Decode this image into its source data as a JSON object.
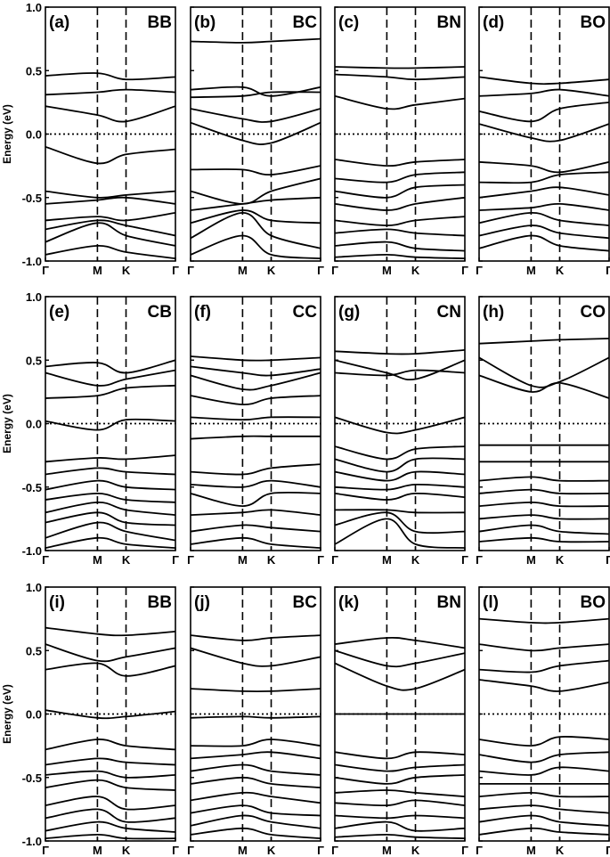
{
  "chart_data": {
    "type": "line",
    "description_grid": "3 rows x 4 columns band-structure panels",
    "x_tick_labels": [
      "Γ",
      "M",
      "K",
      "Γ"
    ],
    "ylabel": "Energy (eV)",
    "ylim": [
      -1.0,
      1.0
    ],
    "y_ticks": [
      1.0,
      0.5,
      0.0,
      -0.5,
      -1.0
    ],
    "y_tick_labels": [
      "1.0",
      "0.5",
      "0.0",
      "-0.5",
      "-1.0"
    ],
    "fermi_level": 0.0,
    "panels": [
      {
        "tag": "(a)",
        "name": "BB",
        "bands": [
          [
            0.46,
            0.48,
            0.43,
            0.45
          ],
          [
            0.31,
            0.33,
            0.35,
            0.33
          ],
          [
            0.22,
            0.15,
            0.1,
            0.22
          ],
          [
            -0.1,
            -0.23,
            -0.16,
            -0.12
          ],
          [
            -0.45,
            -0.5,
            -0.48,
            -0.45
          ],
          [
            -0.55,
            -0.52,
            -0.5,
            -0.55
          ],
          [
            -0.68,
            -0.65,
            -0.68,
            -0.62
          ],
          [
            -0.75,
            -0.68,
            -0.72,
            -0.8
          ],
          [
            -0.85,
            -0.7,
            -0.8,
            -0.88
          ],
          [
            -0.95,
            -0.88,
            -0.93,
            -0.98
          ]
        ]
      },
      {
        "tag": "(b)",
        "name": "BC",
        "bands": [
          [
            0.73,
            0.72,
            0.73,
            0.75
          ],
          [
            0.35,
            0.37,
            0.3,
            0.37
          ],
          [
            0.29,
            0.3,
            0.33,
            0.33
          ],
          [
            0.2,
            0.12,
            0.1,
            0.2
          ],
          [
            0.09,
            -0.05,
            -0.07,
            0.09
          ],
          [
            -0.28,
            -0.28,
            -0.32,
            -0.25
          ],
          [
            -0.45,
            -0.55,
            -0.45,
            -0.35
          ],
          [
            -0.6,
            -0.55,
            -0.52,
            -0.5
          ],
          [
            -0.7,
            -0.6,
            -0.68,
            -0.7
          ],
          [
            -0.82,
            -0.62,
            -0.8,
            -0.9
          ],
          [
            -0.95,
            -0.8,
            -0.95,
            -0.98
          ]
        ]
      },
      {
        "tag": "(c)",
        "name": "BN",
        "bands": [
          [
            0.53,
            0.52,
            0.52,
            0.53
          ],
          [
            0.47,
            0.45,
            0.43,
            0.45
          ],
          [
            0.3,
            0.2,
            0.23,
            0.28
          ],
          [
            -0.2,
            -0.25,
            -0.22,
            -0.2
          ],
          [
            -0.35,
            -0.38,
            -0.32,
            -0.3
          ],
          [
            -0.45,
            -0.5,
            -0.42,
            -0.4
          ],
          [
            -0.55,
            -0.6,
            -0.55,
            -0.5
          ],
          [
            -0.68,
            -0.72,
            -0.68,
            -0.65
          ],
          [
            -0.78,
            -0.75,
            -0.78,
            -0.8
          ],
          [
            -0.88,
            -0.85,
            -0.9,
            -0.92
          ],
          [
            -0.97,
            -0.95,
            -0.97,
            -0.98
          ]
        ]
      },
      {
        "tag": "(d)",
        "name": "BO",
        "bands": [
          [
            0.45,
            0.4,
            0.4,
            0.43
          ],
          [
            0.3,
            0.32,
            0.35,
            0.3
          ],
          [
            0.18,
            0.1,
            0.2,
            0.25
          ],
          [
            0.08,
            -0.03,
            -0.05,
            0.08
          ],
          [
            -0.22,
            -0.25,
            -0.3,
            -0.22
          ],
          [
            -0.38,
            -0.38,
            -0.32,
            -0.3
          ],
          [
            -0.5,
            -0.45,
            -0.42,
            -0.48
          ],
          [
            -0.6,
            -0.58,
            -0.55,
            -0.6
          ],
          [
            -0.7,
            -0.62,
            -0.68,
            -0.72
          ],
          [
            -0.8,
            -0.72,
            -0.78,
            -0.82
          ],
          [
            -0.9,
            -0.8,
            -0.88,
            -0.92
          ]
        ]
      },
      {
        "tag": "(e)",
        "name": "CB",
        "bands": [
          [
            0.45,
            0.48,
            0.4,
            0.5
          ],
          [
            0.4,
            0.3,
            0.35,
            0.42
          ],
          [
            0.2,
            0.22,
            0.28,
            0.3
          ],
          [
            0.02,
            -0.05,
            0.03,
            0.02
          ],
          [
            -0.3,
            -0.27,
            -0.28,
            -0.25
          ],
          [
            -0.4,
            -0.35,
            -0.38,
            -0.4
          ],
          [
            -0.52,
            -0.45,
            -0.5,
            -0.52
          ],
          [
            -0.6,
            -0.55,
            -0.6,
            -0.62
          ],
          [
            -0.7,
            -0.62,
            -0.68,
            -0.72
          ],
          [
            -0.78,
            -0.7,
            -0.78,
            -0.8
          ],
          [
            -0.9,
            -0.78,
            -0.85,
            -0.92
          ],
          [
            -0.98,
            -0.9,
            -0.95,
            -0.98
          ]
        ]
      },
      {
        "tag": "(f)",
        "name": "CC",
        "bands": [
          [
            0.53,
            0.5,
            0.5,
            0.52
          ],
          [
            0.45,
            0.4,
            0.38,
            0.43
          ],
          [
            0.38,
            0.27,
            0.3,
            0.4
          ],
          [
            0.22,
            0.15,
            0.2,
            0.22
          ],
          [
            0.05,
            0.03,
            0.05,
            0.05
          ],
          [
            -0.12,
            -0.1,
            -0.1,
            -0.1
          ],
          [
            -0.38,
            -0.4,
            -0.35,
            -0.32
          ],
          [
            -0.48,
            -0.5,
            -0.45,
            -0.5
          ],
          [
            -0.55,
            -0.65,
            -0.55,
            -0.55
          ],
          [
            -0.72,
            -0.7,
            -0.68,
            -0.72
          ],
          [
            -0.85,
            -0.8,
            -0.82,
            -0.85
          ],
          [
            -0.95,
            -0.9,
            -0.95,
            -0.98
          ]
        ]
      },
      {
        "tag": "(g)",
        "name": "CN",
        "bands": [
          [
            0.57,
            0.55,
            0.55,
            0.58
          ],
          [
            0.5,
            0.4,
            0.35,
            0.5
          ],
          [
            0.4,
            0.38,
            0.42,
            0.4
          ],
          [
            0.05,
            -0.07,
            -0.05,
            0.05
          ],
          [
            -0.18,
            -0.28,
            -0.2,
            -0.18
          ],
          [
            -0.28,
            -0.38,
            -0.28,
            -0.28
          ],
          [
            -0.38,
            -0.45,
            -0.38,
            -0.4
          ],
          [
            -0.5,
            -0.52,
            -0.48,
            -0.5
          ],
          [
            -0.55,
            -0.6,
            -0.55,
            -0.58
          ],
          [
            -0.68,
            -0.68,
            -0.7,
            -0.7
          ],
          [
            -0.8,
            -0.7,
            -0.85,
            -0.85
          ],
          [
            -0.95,
            -0.75,
            -0.95,
            -0.98
          ]
        ]
      },
      {
        "tag": "(h)",
        "name": "CO",
        "bands": [
          [
            0.63,
            0.65,
            0.66,
            0.67
          ],
          [
            0.52,
            0.3,
            0.33,
            0.52
          ],
          [
            0.38,
            0.25,
            0.32,
            0.2
          ],
          [
            -0.17,
            -0.17,
            -0.17,
            -0.17
          ],
          [
            -0.3,
            -0.3,
            -0.3,
            -0.3
          ],
          [
            -0.45,
            -0.42,
            -0.45,
            -0.45
          ],
          [
            -0.55,
            -0.52,
            -0.55,
            -0.55
          ],
          [
            -0.65,
            -0.62,
            -0.65,
            -0.65
          ],
          [
            -0.75,
            -0.72,
            -0.75,
            -0.75
          ],
          [
            -0.85,
            -0.8,
            -0.85,
            -0.87
          ],
          [
            -0.93,
            -0.9,
            -0.93,
            -0.93
          ]
        ]
      },
      {
        "tag": "(i)",
        "name": "BB",
        "bands": [
          [
            0.68,
            0.63,
            0.62,
            0.65
          ],
          [
            0.55,
            0.42,
            0.45,
            0.52
          ],
          [
            0.35,
            0.4,
            0.3,
            0.38
          ],
          [
            0.03,
            -0.03,
            -0.02,
            0.02
          ],
          [
            -0.28,
            -0.2,
            -0.25,
            -0.28
          ],
          [
            -0.4,
            -0.35,
            -0.38,
            -0.4
          ],
          [
            -0.48,
            -0.45,
            -0.5,
            -0.48
          ],
          [
            -0.58,
            -0.52,
            -0.58,
            -0.6
          ],
          [
            -0.72,
            -0.65,
            -0.75,
            -0.72
          ],
          [
            -0.82,
            -0.75,
            -0.85,
            -0.82
          ],
          [
            -0.92,
            -0.85,
            -0.9,
            -0.93
          ],
          [
            -0.98,
            -0.95,
            -0.98,
            -0.98
          ]
        ]
      },
      {
        "tag": "(j)",
        "name": "BC",
        "bands": [
          [
            0.62,
            0.58,
            0.6,
            0.62
          ],
          [
            0.52,
            0.4,
            0.38,
            0.45
          ],
          [
            0.2,
            0.18,
            0.18,
            0.2
          ],
          [
            -0.03,
            -0.02,
            -0.03,
            -0.02
          ],
          [
            -0.25,
            -0.25,
            -0.2,
            -0.25
          ],
          [
            -0.35,
            -0.32,
            -0.3,
            -0.35
          ],
          [
            -0.45,
            -0.4,
            -0.45,
            -0.48
          ],
          [
            -0.55,
            -0.5,
            -0.55,
            -0.58
          ],
          [
            -0.68,
            -0.62,
            -0.65,
            -0.7
          ],
          [
            -0.78,
            -0.72,
            -0.78,
            -0.8
          ],
          [
            -0.88,
            -0.8,
            -0.85,
            -0.9
          ],
          [
            -0.95,
            -0.9,
            -0.95,
            -0.98
          ]
        ]
      },
      {
        "tag": "(k)",
        "name": "BN",
        "bands": [
          [
            0.55,
            0.6,
            0.58,
            0.52
          ],
          [
            0.5,
            0.38,
            0.4,
            0.48
          ],
          [
            0.4,
            0.22,
            0.2,
            0.35
          ],
          [
            0.0,
            0.0,
            0.0,
            0.0
          ],
          [
            -0.3,
            -0.35,
            -0.3,
            -0.32
          ],
          [
            -0.4,
            -0.45,
            -0.42,
            -0.4
          ],
          [
            -0.5,
            -0.55,
            -0.5,
            -0.48
          ],
          [
            -0.62,
            -0.6,
            -0.62,
            -0.65
          ],
          [
            -0.7,
            -0.72,
            -0.68,
            -0.72
          ],
          [
            -0.8,
            -0.82,
            -0.8,
            -0.82
          ],
          [
            -0.9,
            -0.85,
            -0.92,
            -0.9
          ],
          [
            -0.97,
            -0.95,
            -0.97,
            -0.98
          ]
        ]
      },
      {
        "tag": "(l)",
        "name": "BO",
        "bands": [
          [
            0.75,
            0.72,
            0.72,
            0.75
          ],
          [
            0.55,
            0.5,
            0.52,
            0.55
          ],
          [
            0.35,
            0.33,
            0.38,
            0.42
          ],
          [
            0.27,
            0.22,
            0.18,
            0.25
          ],
          [
            -0.2,
            -0.25,
            -0.18,
            -0.2
          ],
          [
            -0.32,
            -0.38,
            -0.32,
            -0.3
          ],
          [
            -0.45,
            -0.48,
            -0.42,
            -0.45
          ],
          [
            -0.55,
            -0.55,
            -0.55,
            -0.55
          ],
          [
            -0.65,
            -0.62,
            -0.65,
            -0.65
          ],
          [
            -0.75,
            -0.72,
            -0.75,
            -0.78
          ],
          [
            -0.85,
            -0.8,
            -0.85,
            -0.88
          ],
          [
            -0.95,
            -0.9,
            -0.93,
            -0.95
          ]
        ]
      }
    ]
  }
}
